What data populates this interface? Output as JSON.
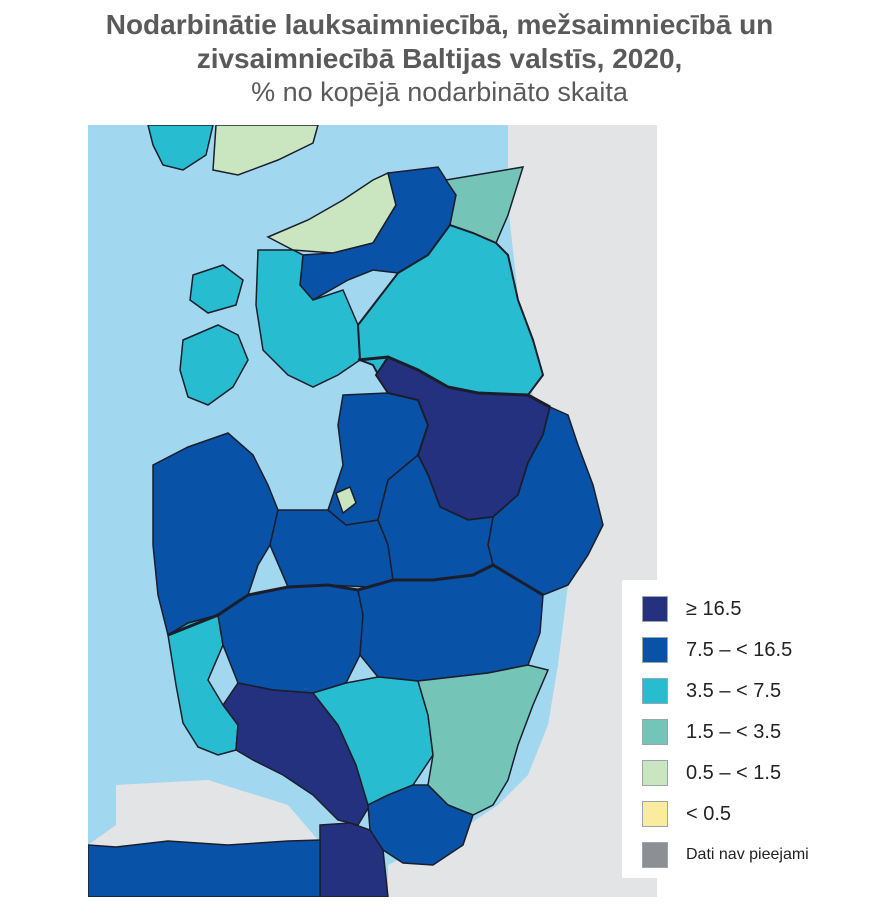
{
  "header": {
    "title_line1": "Nodarbinātie lauksaimniecībā, mežsaimniecībā un",
    "title_line2": "zivsaimniecībā Baltijas valstīs, 2020,",
    "subtitle": "% no kopējā nodarbināto skaita"
  },
  "colors": {
    "sea": "#a2d8ef",
    "land_outside": "#e3e4e6",
    "border": "#1b1e2a",
    "class_ge_16_5": "#23317f",
    "class_7_5_16_5": "#0852a8",
    "class_3_5_7_5": "#27bccf",
    "class_1_5_3_5": "#74c5b8",
    "class_0_5_1_5": "#c9e6c0",
    "class_lt_0_5": "#fbeb9e",
    "class_na": "#8c8f94"
  },
  "legend": {
    "items": [
      {
        "label": "≥ 16.5",
        "color": "#23317f"
      },
      {
        "label": "7.5 – < 16.5",
        "color": "#0852a8"
      },
      {
        "label": "3.5 – < 7.5",
        "color": "#27bccf"
      },
      {
        "label": "1.5 – < 3.5",
        "color": "#74c5b8"
      },
      {
        "label": "0.5 – < 1.5",
        "color": "#c9e6c0"
      },
      {
        "label": "< 0.5",
        "color": "#fbeb9e"
      },
      {
        "label": "Dati nav pieejami",
        "color": "#8c8f94"
      }
    ]
  }
}
